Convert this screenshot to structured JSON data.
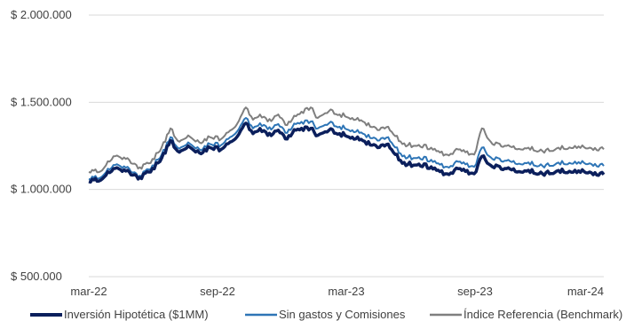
{
  "chart_data": {
    "type": "line",
    "x_ticks": [
      "mar-22",
      "sep-22",
      "mar-23",
      "sep-23",
      "mar-24"
    ],
    "y_ticks": [
      "$ 500.000",
      "$ 1.000.000",
      "$ 1.500.000",
      "$ 2.000.000"
    ],
    "y_tick_values": [
      500000,
      1000000,
      1500000,
      2000000
    ],
    "ylim": [
      500000,
      2000000
    ],
    "xlim": [
      "2022-03-01",
      "2024-03-01"
    ],
    "grid": "horizontal",
    "legend_position": "bottom",
    "series": [
      {
        "name": "Inversión Hipotética ($1MM)",
        "color": "#0b1f5c",
        "points": [
          [
            "2022-03-01",
            1045000
          ],
          [
            "2022-03-20",
            1060000
          ],
          [
            "2022-04-05",
            1120000
          ],
          [
            "2022-04-25",
            1110000
          ],
          [
            "2022-05-10",
            1060000
          ],
          [
            "2022-05-25",
            1100000
          ],
          [
            "2022-06-10",
            1160000
          ],
          [
            "2022-06-25",
            1280000
          ],
          [
            "2022-07-05",
            1220000
          ],
          [
            "2022-07-20",
            1250000
          ],
          [
            "2022-08-05",
            1210000
          ],
          [
            "2022-08-20",
            1240000
          ],
          [
            "2022-09-05",
            1230000
          ],
          [
            "2022-09-25",
            1290000
          ],
          [
            "2022-10-10",
            1380000
          ],
          [
            "2022-10-20",
            1320000
          ],
          [
            "2022-10-30",
            1350000
          ],
          [
            "2022-11-10",
            1310000
          ],
          [
            "2022-11-25",
            1340000
          ],
          [
            "2022-12-05",
            1290000
          ],
          [
            "2022-12-20",
            1340000
          ],
          [
            "2023-01-10",
            1350000
          ],
          [
            "2023-01-20",
            1310000
          ],
          [
            "2023-02-05",
            1340000
          ],
          [
            "2023-02-20",
            1320000
          ],
          [
            "2023-03-10",
            1300000
          ],
          [
            "2023-03-25",
            1280000
          ],
          [
            "2023-04-15",
            1240000
          ],
          [
            "2023-04-30",
            1260000
          ],
          [
            "2023-05-20",
            1150000
          ],
          [
            "2023-06-10",
            1140000
          ],
          [
            "2023-06-30",
            1130000
          ],
          [
            "2023-07-20",
            1090000
          ],
          [
            "2023-08-10",
            1120000
          ],
          [
            "2023-08-30",
            1090000
          ],
          [
            "2023-09-10",
            1190000
          ],
          [
            "2023-09-25",
            1130000
          ],
          [
            "2023-10-15",
            1120000
          ],
          [
            "2023-10-30",
            1100000
          ],
          [
            "2023-11-15",
            1110000
          ],
          [
            "2023-12-05",
            1090000
          ],
          [
            "2023-12-25",
            1105000
          ],
          [
            "2024-01-20",
            1110000
          ],
          [
            "2024-02-10",
            1100000
          ],
          [
            "2024-03-01",
            1085000
          ]
        ]
      },
      {
        "name": "Sin gastos y Comisiones",
        "color": "#2e75b6",
        "points": [
          [
            "2022-03-01",
            1060000
          ],
          [
            "2022-03-20",
            1075000
          ],
          [
            "2022-04-05",
            1140000
          ],
          [
            "2022-04-25",
            1130000
          ],
          [
            "2022-05-10",
            1070000
          ],
          [
            "2022-05-25",
            1115000
          ],
          [
            "2022-06-10",
            1180000
          ],
          [
            "2022-06-25",
            1300000
          ],
          [
            "2022-07-05",
            1240000
          ],
          [
            "2022-07-20",
            1270000
          ],
          [
            "2022-08-05",
            1230000
          ],
          [
            "2022-08-20",
            1260000
          ],
          [
            "2022-09-05",
            1255000
          ],
          [
            "2022-09-25",
            1320000
          ],
          [
            "2022-10-10",
            1410000
          ],
          [
            "2022-10-20",
            1350000
          ],
          [
            "2022-10-30",
            1380000
          ],
          [
            "2022-11-10",
            1345000
          ],
          [
            "2022-11-25",
            1375000
          ],
          [
            "2022-12-05",
            1325000
          ],
          [
            "2022-12-20",
            1375000
          ],
          [
            "2023-01-10",
            1390000
          ],
          [
            "2023-01-20",
            1350000
          ],
          [
            "2023-02-05",
            1380000
          ],
          [
            "2023-02-20",
            1360000
          ],
          [
            "2023-03-10",
            1340000
          ],
          [
            "2023-03-25",
            1320000
          ],
          [
            "2023-04-15",
            1280000
          ],
          [
            "2023-04-30",
            1300000
          ],
          [
            "2023-05-20",
            1190000
          ],
          [
            "2023-06-10",
            1180000
          ],
          [
            "2023-06-30",
            1170000
          ],
          [
            "2023-07-20",
            1130000
          ],
          [
            "2023-08-10",
            1160000
          ],
          [
            "2023-08-30",
            1130000
          ],
          [
            "2023-09-10",
            1240000
          ],
          [
            "2023-09-25",
            1175000
          ],
          [
            "2023-10-15",
            1165000
          ],
          [
            "2023-10-30",
            1145000
          ],
          [
            "2023-11-15",
            1155000
          ],
          [
            "2023-12-05",
            1135000
          ],
          [
            "2023-12-25",
            1150000
          ],
          [
            "2024-01-20",
            1160000
          ],
          [
            "2024-02-10",
            1150000
          ],
          [
            "2024-03-01",
            1135000
          ]
        ]
      },
      {
        "name": "Índice Referencia (Benchmark)",
        "color": "#7f7f7f",
        "points": [
          [
            "2022-03-01",
            1100000
          ],
          [
            "2022-03-20",
            1110000
          ],
          [
            "2022-04-05",
            1190000
          ],
          [
            "2022-04-25",
            1180000
          ],
          [
            "2022-05-10",
            1120000
          ],
          [
            "2022-05-25",
            1150000
          ],
          [
            "2022-06-10",
            1220000
          ],
          [
            "2022-06-25",
            1350000
          ],
          [
            "2022-07-05",
            1280000
          ],
          [
            "2022-07-20",
            1310000
          ],
          [
            "2022-08-05",
            1270000
          ],
          [
            "2022-08-20",
            1300000
          ],
          [
            "2022-09-05",
            1290000
          ],
          [
            "2022-09-25",
            1360000
          ],
          [
            "2022-10-10",
            1470000
          ],
          [
            "2022-10-20",
            1400000
          ],
          [
            "2022-10-30",
            1430000
          ],
          [
            "2022-11-10",
            1390000
          ],
          [
            "2022-11-25",
            1430000
          ],
          [
            "2022-12-05",
            1370000
          ],
          [
            "2022-12-20",
            1420000
          ],
          [
            "2023-01-10",
            1470000
          ],
          [
            "2023-01-20",
            1410000
          ],
          [
            "2023-02-05",
            1450000
          ],
          [
            "2023-02-20",
            1430000
          ],
          [
            "2023-03-10",
            1410000
          ],
          [
            "2023-03-25",
            1390000
          ],
          [
            "2023-04-15",
            1340000
          ],
          [
            "2023-04-30",
            1360000
          ],
          [
            "2023-05-20",
            1260000
          ],
          [
            "2023-06-10",
            1250000
          ],
          [
            "2023-06-30",
            1240000
          ],
          [
            "2023-07-20",
            1200000
          ],
          [
            "2023-08-10",
            1230000
          ],
          [
            "2023-08-30",
            1200000
          ],
          [
            "2023-09-10",
            1350000
          ],
          [
            "2023-09-25",
            1260000
          ],
          [
            "2023-10-15",
            1250000
          ],
          [
            "2023-10-30",
            1230000
          ],
          [
            "2023-11-15",
            1240000
          ],
          [
            "2023-12-05",
            1220000
          ],
          [
            "2023-12-25",
            1235000
          ],
          [
            "2024-01-20",
            1250000
          ],
          [
            "2024-02-10",
            1240000
          ],
          [
            "2024-03-01",
            1230000
          ]
        ]
      }
    ]
  }
}
